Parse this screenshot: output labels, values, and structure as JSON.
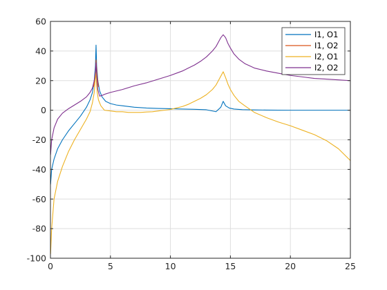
{
  "chart_data": {
    "type": "line",
    "title": "",
    "xlabel": "",
    "ylabel": "",
    "xlim": [
      0,
      25
    ],
    "ylim": [
      -100,
      60
    ],
    "xticks": [
      0,
      5,
      10,
      15,
      20,
      25
    ],
    "yticks": [
      -100,
      -80,
      -60,
      -40,
      -20,
      0,
      20,
      40,
      60
    ],
    "grid": true,
    "legend": "top-right",
    "series": [
      {
        "name": "I1, O1",
        "color": "#0072BD",
        "x": [
          0.01,
          0.1,
          0.3,
          0.6,
          1.0,
          1.5,
          2.0,
          2.5,
          3.0,
          3.3,
          3.5,
          3.65,
          3.75,
          3.8,
          3.85,
          3.95,
          4.1,
          4.3,
          4.6,
          5.0,
          5.5,
          6.0,
          7.0,
          8.0,
          9.0,
          10.0,
          11.0,
          12.0,
          13.0,
          13.8,
          14.2,
          14.4,
          14.6,
          14.9,
          15.3,
          16.0,
          17.0,
          18.0,
          20.0,
          22.0,
          25.0
        ],
        "y": [
          -50,
          -40,
          -33,
          -26,
          -20,
          -14,
          -9,
          -4,
          2,
          7,
          12,
          20,
          30,
          44,
          30,
          20,
          13,
          9,
          6,
          4.5,
          3.5,
          3,
          2,
          1.5,
          1.2,
          1,
          0.8,
          0.6,
          0.3,
          -1,
          2,
          6,
          3,
          1.5,
          0.8,
          0.4,
          0.2,
          0.1,
          0,
          0,
          0
        ]
      },
      {
        "name": "I1, O2",
        "color": "#D95319",
        "x": [
          3.6,
          3.7,
          3.75,
          3.8,
          3.85,
          3.9,
          4.0
        ],
        "y": [
          16,
          22,
          26,
          34,
          28,
          22,
          16
        ]
      },
      {
        "name": "I2, O1",
        "color": "#EDB120",
        "x": [
          0.01,
          0.1,
          0.3,
          0.6,
          1.0,
          1.5,
          2.0,
          2.5,
          3.0,
          3.3,
          3.5,
          3.65,
          3.72,
          3.77,
          3.82,
          3.9,
          4.0,
          4.2,
          4.5,
          5.0,
          5.5,
          6.0,
          6.5,
          7.0,
          7.5,
          8.0,
          8.5,
          9.0,
          9.5,
          10.0,
          10.5,
          11.0,
          11.5,
          12.0,
          12.5,
          13.0,
          13.5,
          13.8,
          14.0,
          14.2,
          14.4,
          14.6,
          14.8,
          15.0,
          15.3,
          15.7,
          16.2,
          17.0,
          18.0,
          19.0,
          20.0,
          21.0,
          22.0,
          23.0,
          24.0,
          25.0
        ],
        "y": [
          -97,
          -80,
          -60,
          -48,
          -38,
          -28,
          -20,
          -13,
          -6,
          -1,
          5,
          12,
          20,
          26,
          20,
          12,
          7,
          3,
          0,
          -0.5,
          -1,
          -1,
          -1.5,
          -1.5,
          -1.5,
          -1.2,
          -1,
          -0.5,
          0,
          0.5,
          1.5,
          2.5,
          4,
          6,
          8,
          10.5,
          14,
          17,
          20,
          23,
          26,
          22,
          17.5,
          14,
          10,
          6,
          3,
          -1.5,
          -5,
          -8,
          -10.5,
          -13.5,
          -16.5,
          -20.5,
          -26,
          -34
        ]
      },
      {
        "name": "I2, O2",
        "color": "#7E2F8E",
        "x": [
          0.01,
          0.1,
          0.3,
          0.6,
          1.0,
          1.5,
          2.0,
          2.5,
          3.0,
          3.3,
          3.5,
          3.65,
          3.75,
          3.8,
          3.85,
          3.95,
          4.1,
          4.3,
          4.6,
          5.0,
          6.0,
          7.0,
          8.0,
          9.0,
          10.0,
          11.0,
          11.5,
          12.0,
          12.5,
          13.0,
          13.5,
          13.8,
          14.0,
          14.2,
          14.4,
          14.6,
          14.8,
          15.0,
          15.3,
          15.7,
          16.2,
          17.0,
          18.0,
          19.0,
          20.0,
          21.0,
          22.0,
          23.0,
          24.0,
          25.0
        ],
        "y": [
          -30,
          -20,
          -12,
          -6,
          -2,
          1,
          3.5,
          6,
          9,
          12,
          15,
          20,
          26,
          32,
          24,
          14,
          9.5,
          10,
          11,
          12,
          14,
          16.5,
          18.5,
          21,
          23.5,
          26.5,
          28.5,
          30.5,
          33,
          36,
          40,
          43,
          46,
          49,
          51,
          49,
          45,
          42,
          38,
          34.5,
          31.5,
          28.5,
          26.5,
          25,
          23.5,
          22.5,
          21.5,
          21,
          20.5,
          20
        ]
      }
    ]
  }
}
